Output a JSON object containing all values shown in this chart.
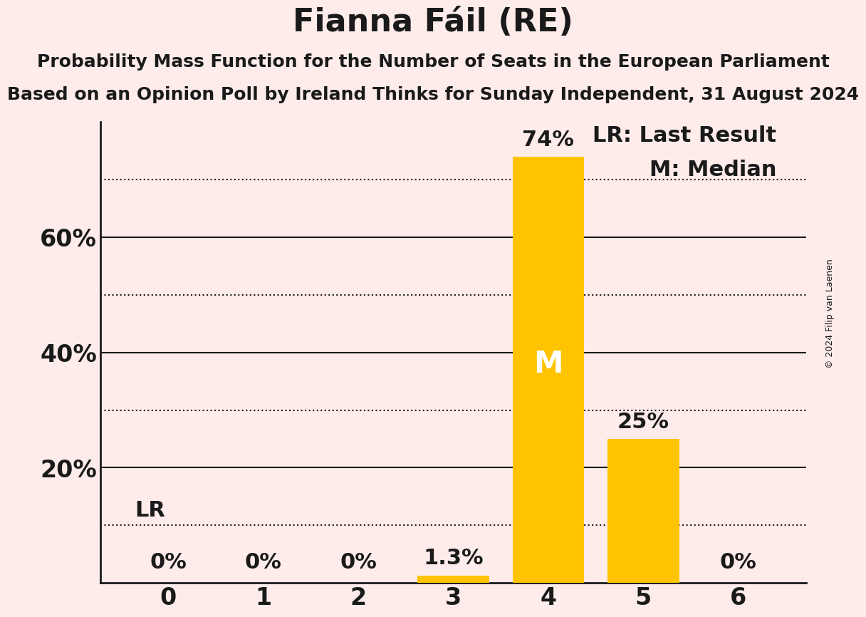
{
  "title": "Fianna Fáil (RE)",
  "subtitle1": "Probability Mass Function for the Number of Seats in the European Parliament",
  "subtitle2": "Based on an Opinion Poll by Ireland Thinks for Sunday Independent, 31 August 2024",
  "copyright": "© 2024 Filip van Laenen",
  "categories": [
    0,
    1,
    2,
    3,
    4,
    5,
    6
  ],
  "values": [
    0.0,
    0.0,
    0.0,
    1.3,
    74.0,
    25.0,
    0.0
  ],
  "bar_color": "#FFC300",
  "background_color": "#FDECEA",
  "text_color": "#1a1a1a",
  "ylim": [
    0,
    80
  ],
  "yticks": [
    20,
    40,
    60
  ],
  "ytick_labels": [
    "20%",
    "40%",
    "60%"
  ],
  "solid_lines": [
    20,
    40,
    60
  ],
  "dotted_lines": [
    10,
    30,
    50,
    70
  ],
  "lr_value": 10,
  "median_seat": 4,
  "legend_lr": "LR: Last Result",
  "legend_m": "M: Median",
  "bar_labels": [
    "0%",
    "0%",
    "0%",
    "1.3%",
    "74%",
    "25%",
    "0%"
  ],
  "title_fontsize": 32,
  "subtitle_fontsize": 18,
  "label_fontsize": 22,
  "tick_fontsize": 24,
  "legend_fontsize": 22,
  "bar_width": 0.75
}
